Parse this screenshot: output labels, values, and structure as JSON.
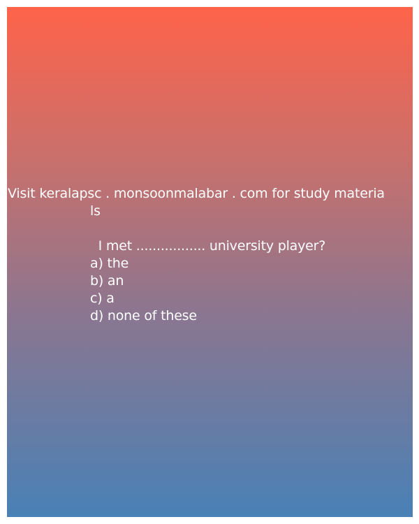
{
  "promo": {
    "line1": "Visit keralapsc . monsoonmalabar . com for study materia",
    "line2": "ls"
  },
  "question": {
    "text": "  I met ................. university player?"
  },
  "options": [
    "a) the",
    "b) an",
    "c) a",
    "d) none of these"
  ],
  "colors": {
    "gradient_top": "#ff634a",
    "gradient_bottom": "#4981b6",
    "text": "#ffffff"
  }
}
